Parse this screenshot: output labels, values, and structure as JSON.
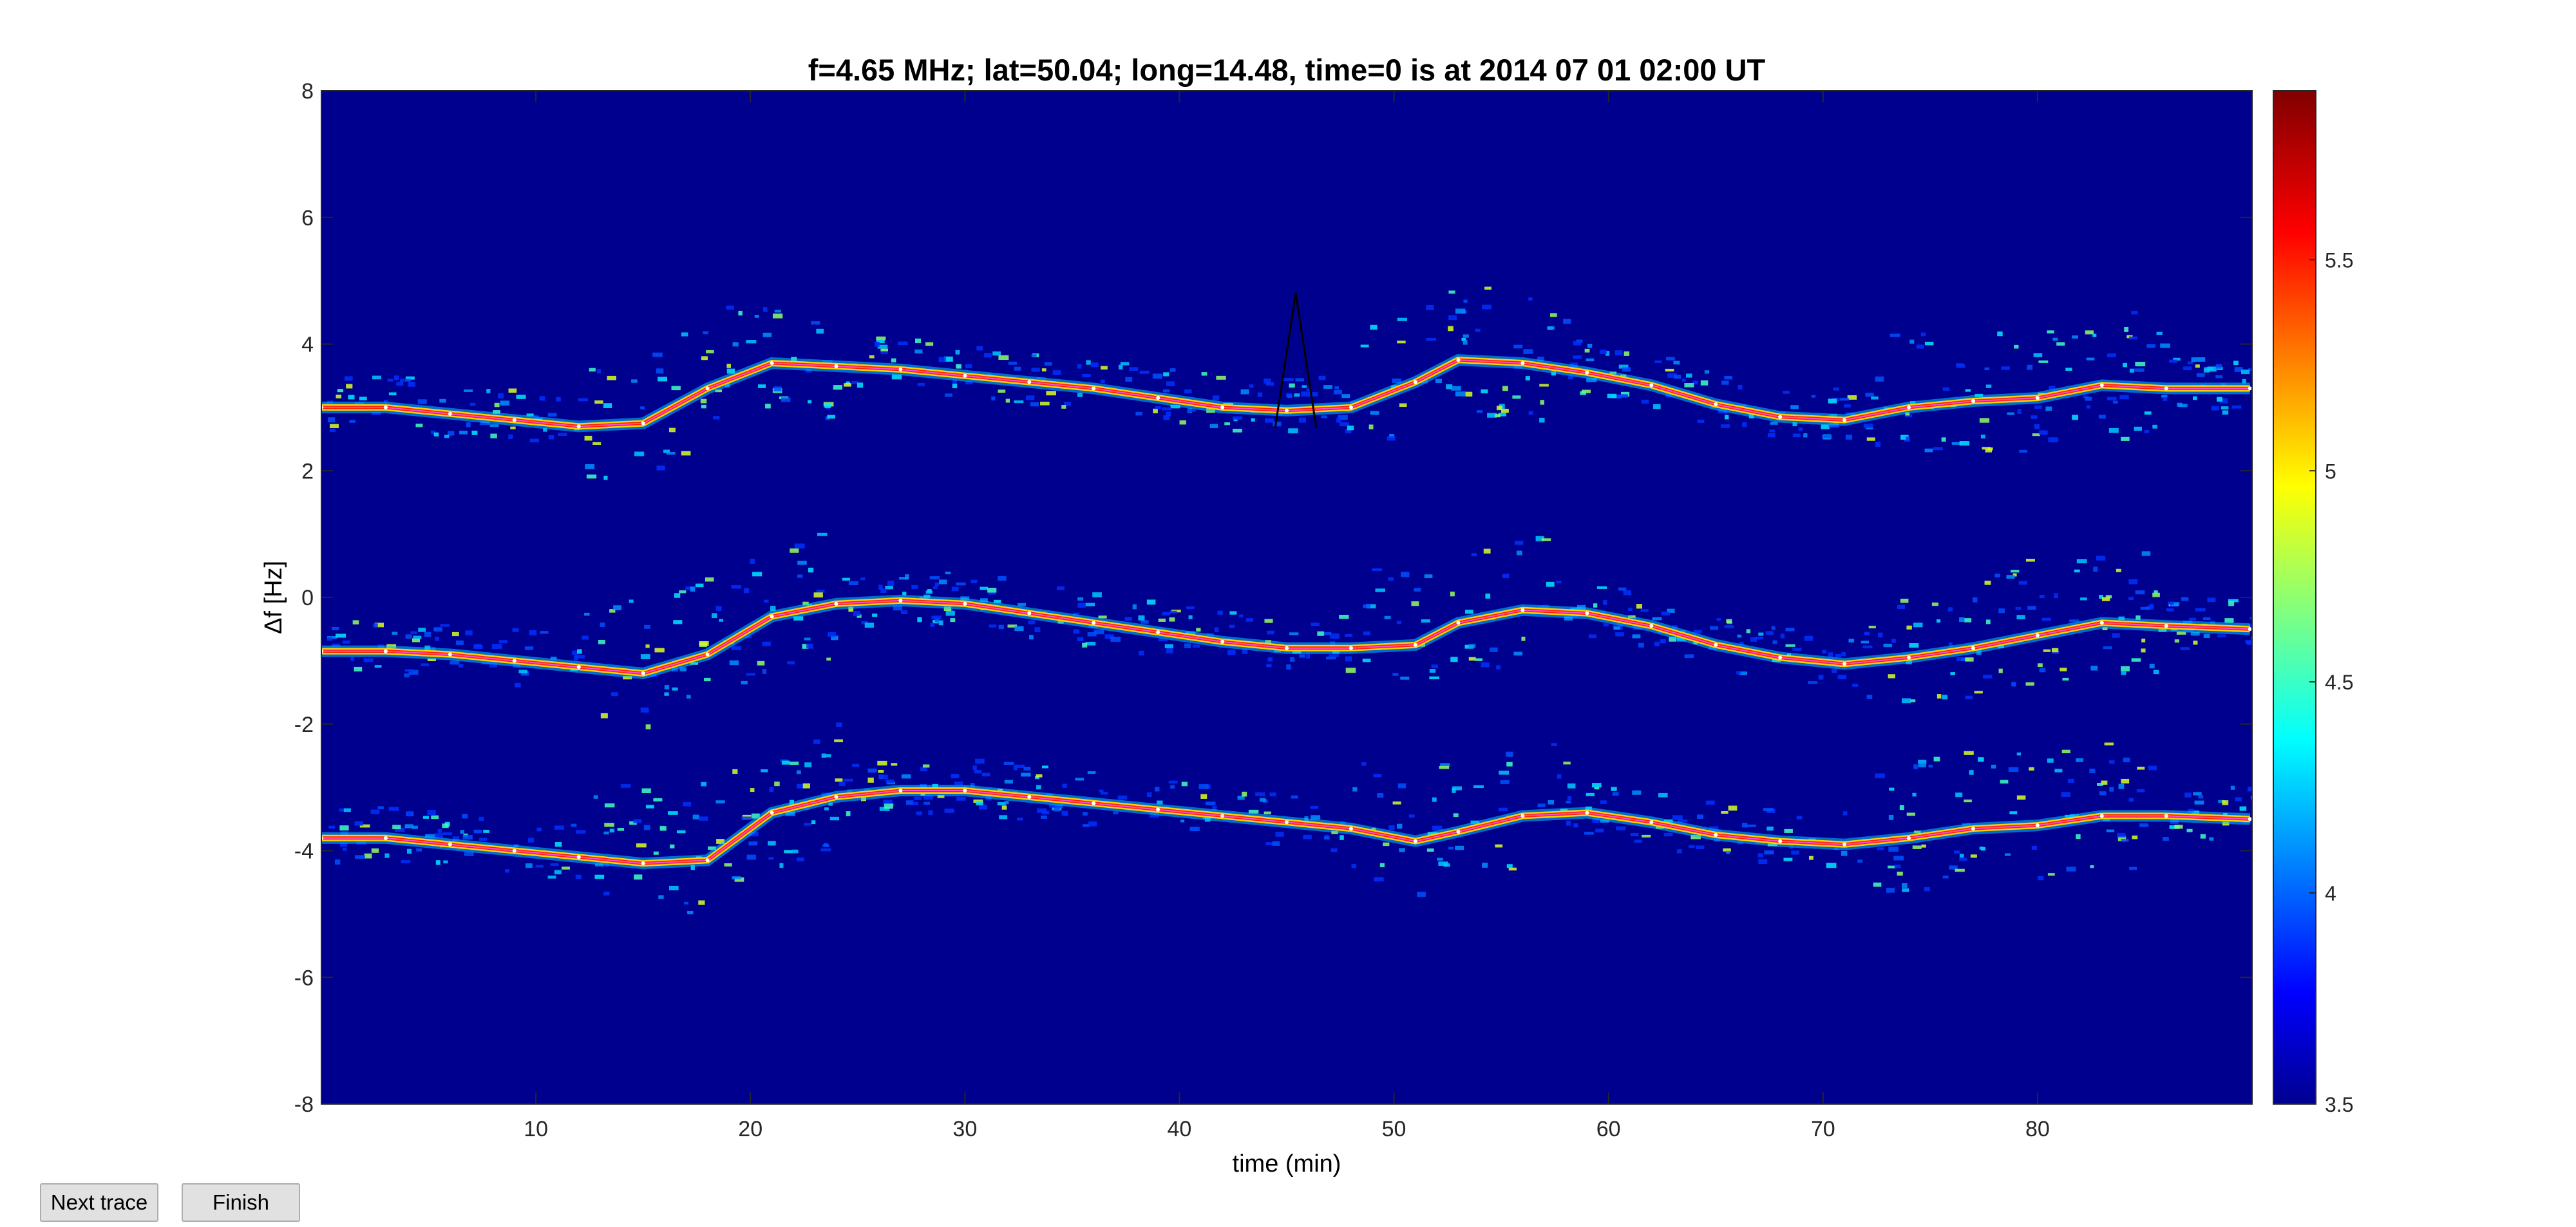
{
  "chart_data": {
    "type": "heatmap",
    "title": "f=4.65 MHz;  lat=50.04; long=14.48, time=0 is at 2014 07 01 02:00 UT",
    "xlabel": "time (min)",
    "ylabel": "Δf [Hz]",
    "xlim": [
      0,
      90
    ],
    "ylim": [
      -8,
      8
    ],
    "xticks": [
      10,
      20,
      30,
      40,
      50,
      60,
      70,
      80
    ],
    "yticks": [
      8,
      6,
      4,
      2,
      0,
      -2,
      -4,
      -6,
      -8
    ],
    "colorbar": {
      "min": 3.5,
      "max": 5.9,
      "ticks": [
        5.5,
        5,
        4.5,
        4,
        3.5
      ],
      "colormap": "jet"
    },
    "grid": false,
    "series": [
      {
        "x": [
          0,
          3,
          6,
          9,
          12,
          15,
          18,
          21,
          24,
          27,
          30,
          33,
          36,
          39,
          42,
          45,
          48,
          51,
          53,
          56,
          59,
          62,
          65,
          68,
          71,
          74,
          77,
          80,
          83,
          86,
          89.9
        ],
        "values": [
          3.0,
          3.0,
          2.9,
          2.8,
          2.7,
          2.75,
          3.3,
          3.7,
          3.65,
          3.6,
          3.5,
          3.4,
          3.3,
          3.15,
          3.0,
          2.95,
          3.0,
          3.4,
          3.75,
          3.7,
          3.55,
          3.35,
          3.05,
          2.85,
          2.8,
          3.0,
          3.1,
          3.15,
          3.35,
          3.3,
          3.3
        ]
      },
      {
        "x": [
          0,
          3,
          6,
          9,
          12,
          15,
          18,
          21,
          24,
          27,
          30,
          33,
          36,
          39,
          42,
          45,
          48,
          51,
          53,
          56,
          59,
          62,
          65,
          68,
          71,
          74,
          77,
          80,
          83,
          86,
          89.9
        ],
        "values": [
          -0.85,
          -0.85,
          -0.9,
          -1.0,
          -1.1,
          -1.2,
          -0.9,
          -0.3,
          -0.1,
          -0.05,
          -0.1,
          -0.25,
          -0.4,
          -0.55,
          -0.7,
          -0.8,
          -0.8,
          -0.75,
          -0.4,
          -0.2,
          -0.25,
          -0.45,
          -0.75,
          -0.95,
          -1.05,
          -0.95,
          -0.8,
          -0.6,
          -0.4,
          -0.45,
          -0.5
        ]
      },
      {
        "x": [
          0,
          3,
          6,
          9,
          12,
          15,
          18,
          21,
          24,
          27,
          30,
          33,
          36,
          39,
          42,
          45,
          48,
          51,
          53,
          56,
          59,
          62,
          65,
          68,
          71,
          74,
          77,
          80,
          83,
          86,
          89.9
        ],
        "values": [
          -3.8,
          -3.8,
          -3.9,
          -4.0,
          -4.1,
          -4.2,
          -4.15,
          -3.4,
          -3.15,
          -3.05,
          -3.05,
          -3.15,
          -3.25,
          -3.35,
          -3.45,
          -3.55,
          -3.65,
          -3.85,
          -3.7,
          -3.45,
          -3.4,
          -3.55,
          -3.75,
          -3.85,
          -3.9,
          -3.8,
          -3.65,
          -3.6,
          -3.45,
          -3.45,
          -3.5
        ]
      }
    ]
  },
  "ui": {
    "next_label": "Next trace",
    "finish_label": "Finish"
  },
  "colors": {
    "background": "#00008f",
    "trace_outline": "#ff4be0"
  }
}
